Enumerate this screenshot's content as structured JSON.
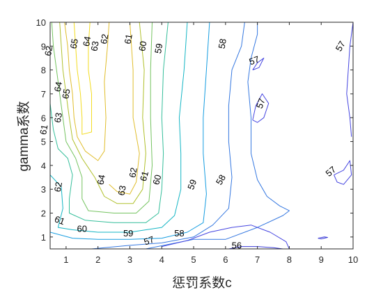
{
  "chart_data": {
    "type": "contour",
    "xlabel": "惩罚系数c",
    "ylabel": "gamma系数",
    "xlim": [
      0.5,
      10
    ],
    "ylim": [
      0.5,
      10
    ],
    "x_ticks": [
      1,
      2,
      3,
      4,
      5,
      6,
      7,
      8,
      9,
      10
    ],
    "y_ticks": [
      1,
      2,
      3,
      4,
      5,
      6,
      7,
      8,
      9,
      10
    ],
    "grid": false,
    "colormap": "parula",
    "level_colors": {
      "56": "#3a3bd6",
      "57": "#4444e0",
      "58": "#3477e0",
      "59": "#149ce0",
      "60": "#13b5c4",
      "61": "#34be9a",
      "62": "#74c35f",
      "63": "#b0c02c",
      "64": "#e0bd2c",
      "65": "#f3dc20"
    },
    "contours": [
      {
        "level": 65,
        "points": [
          [
            1.25,
            10
          ],
          [
            1.3,
            9
          ],
          [
            1.35,
            8
          ],
          [
            1.45,
            7
          ],
          [
            1.5,
            6
          ],
          [
            1.5,
            5.3
          ],
          [
            1.8,
            5.4
          ],
          [
            1.8,
            7
          ],
          [
            1.7,
            8
          ],
          [
            1.7,
            9
          ],
          [
            1.75,
            10
          ]
        ]
      },
      {
        "level": 64,
        "points": [
          [
            0.95,
            10
          ],
          [
            1.05,
            9
          ],
          [
            1.1,
            8
          ],
          [
            1.2,
            7
          ],
          [
            1.25,
            6
          ],
          [
            1.35,
            5.2
          ],
          [
            1.6,
            4.6
          ],
          [
            2.0,
            4.2
          ],
          [
            2.2,
            4.6
          ],
          [
            2.25,
            6
          ],
          [
            2.2,
            7.5
          ],
          [
            2.3,
            9
          ],
          [
            2.35,
            10
          ]
        ]
      },
      {
        "level": 64,
        "points": [
          [
            2.35,
            3.2
          ],
          [
            2.6,
            2.9
          ],
          [
            3.0,
            2.8
          ],
          [
            3.2,
            3.3
          ],
          [
            3.3,
            4.5
          ],
          [
            3.1,
            6
          ],
          [
            3.1,
            8
          ],
          [
            3.0,
            10
          ]
        ]
      },
      {
        "level": 63,
        "points": [
          [
            0.8,
            10
          ],
          [
            0.85,
            9
          ],
          [
            0.9,
            8
          ],
          [
            1.0,
            7
          ],
          [
            1.1,
            6
          ],
          [
            1.2,
            5.1
          ],
          [
            1.5,
            4.3
          ],
          [
            1.9,
            3.5
          ],
          [
            2.2,
            2.7
          ],
          [
            2.6,
            2.4
          ],
          [
            3.1,
            2.4
          ],
          [
            3.4,
            3.0
          ],
          [
            3.5,
            4.5
          ],
          [
            3.4,
            6
          ],
          [
            3.45,
            8
          ],
          [
            3.3,
            10
          ]
        ]
      },
      {
        "level": 62,
        "points": [
          [
            0.55,
            10
          ],
          [
            0.6,
            9
          ],
          [
            0.7,
            8
          ],
          [
            0.8,
            7
          ],
          [
            0.9,
            6
          ],
          [
            1.0,
            5.0
          ],
          [
            1.3,
            4.3
          ],
          [
            1.5,
            3.5
          ],
          [
            1.5,
            2.6
          ],
          [
            1.7,
            2.1
          ],
          [
            2.5,
            2.0
          ],
          [
            3.2,
            2.0
          ],
          [
            3.6,
            2.5
          ],
          [
            3.7,
            4.0
          ],
          [
            3.65,
            6
          ],
          [
            3.65,
            8
          ],
          [
            3.7,
            10
          ]
        ]
      },
      {
        "level": 61,
        "points": [
          [
            0.5,
            6.6
          ],
          [
            0.6,
            5.5
          ],
          [
            0.75,
            4.7
          ],
          [
            1.05,
            4.3
          ],
          [
            1.2,
            3.6
          ],
          [
            1.1,
            2.6
          ],
          [
            1.1,
            2.0
          ],
          [
            1.6,
            1.7
          ],
          [
            2.5,
            1.6
          ],
          [
            3.5,
            1.6
          ],
          [
            3.9,
            2.0
          ],
          [
            4.0,
            3.0
          ],
          [
            4.05,
            4.5
          ],
          [
            4.0,
            6
          ],
          [
            4.05,
            8
          ],
          [
            4.2,
            10
          ]
        ]
      },
      {
        "level": 60,
        "points": [
          [
            0.5,
            3.6
          ],
          [
            0.85,
            3.1
          ],
          [
            0.9,
            2.2
          ],
          [
            0.75,
            1.4
          ],
          [
            1.2,
            1.3
          ],
          [
            2.0,
            1.2
          ],
          [
            3.0,
            1.2
          ],
          [
            4.0,
            1.4
          ],
          [
            4.4,
            1.9
          ],
          [
            4.6,
            3.0
          ],
          [
            4.6,
            4.5
          ],
          [
            4.55,
            6
          ],
          [
            4.7,
            8
          ],
          [
            4.8,
            10
          ]
        ]
      },
      {
        "level": 59,
        "points": [
          [
            0.5,
            1.2
          ],
          [
            1.2,
            0.95
          ],
          [
            2.0,
            0.9
          ],
          [
            3.0,
            0.9
          ],
          [
            4.0,
            0.95
          ],
          [
            4.8,
            1.2
          ],
          [
            5.3,
            1.6
          ],
          [
            5.4,
            2.8
          ],
          [
            5.3,
            4.5
          ],
          [
            5.3,
            6
          ],
          [
            5.4,
            8
          ],
          [
            5.5,
            10
          ]
        ]
      },
      {
        "level": 58,
        "points": [
          [
            1.8,
            0.5
          ],
          [
            3.0,
            0.65
          ],
          [
            4.0,
            0.75
          ],
          [
            5.0,
            1.0
          ],
          [
            5.6,
            1.5
          ],
          [
            6.1,
            2.2
          ],
          [
            6.2,
            3.5
          ],
          [
            6.1,
            5
          ],
          [
            6.1,
            6.5
          ],
          [
            6.2,
            8
          ],
          [
            6.5,
            9
          ],
          [
            6.6,
            10
          ]
        ]
      },
      {
        "level": 58,
        "points": [
          [
            3.5,
            0.5
          ],
          [
            5.0,
            0.9
          ],
          [
            6.0,
            0.9
          ],
          [
            7.0,
            1.4
          ],
          [
            7.8,
            1.9
          ],
          [
            8.0,
            2.1
          ],
          [
            7.7,
            2.3
          ],
          [
            7.3,
            2.7
          ],
          [
            7.0,
            3.4
          ],
          [
            6.8,
            4.5
          ],
          [
            6.8,
            6
          ],
          [
            6.7,
            7.5
          ],
          [
            6.8,
            8.5
          ],
          [
            7.0,
            9.5
          ],
          [
            7.0,
            10
          ]
        ]
      },
      {
        "level": 57,
        "points": [
          [
            4.0,
            0.6
          ],
          [
            4.8,
            0.85
          ],
          [
            5.5,
            1.2
          ],
          [
            6.2,
            1.4
          ],
          [
            6.8,
            1.5
          ],
          [
            7.4,
            1.2
          ],
          [
            7.9,
            0.8
          ],
          [
            8.0,
            0.5
          ]
        ]
      },
      {
        "level": 57,
        "points": [
          [
            6.85,
            8.0
          ],
          [
            7.05,
            8.1
          ],
          [
            7.2,
            8.5
          ],
          [
            7.0,
            8.3
          ],
          [
            6.85,
            8.0
          ]
        ]
      },
      {
        "level": 57,
        "points": [
          [
            6.85,
            5.9
          ],
          [
            6.95,
            6.5
          ],
          [
            7.15,
            7.0
          ],
          [
            7.35,
            6.6
          ],
          [
            7.2,
            6.0
          ],
          [
            7.0,
            5.8
          ],
          [
            6.85,
            5.9
          ]
        ]
      },
      {
        "level": 57,
        "points": [
          [
            9.4,
            3.6
          ],
          [
            9.7,
            3.8
          ],
          [
            9.9,
            4.2
          ],
          [
            9.95,
            3.6
          ],
          [
            9.7,
            3.2
          ],
          [
            9.5,
            3.3
          ],
          [
            9.4,
            3.6
          ]
        ]
      },
      {
        "level": 57,
        "points": [
          [
            10,
            10
          ],
          [
            9.9,
            9.0
          ],
          [
            9.85,
            8.0
          ],
          [
            9.8,
            7.0
          ],
          [
            9.9,
            6.0
          ],
          [
            9.95,
            5.2
          ]
        ]
      },
      {
        "level": 56,
        "points": [
          [
            6.1,
            0.5
          ],
          [
            6.5,
            0.6
          ],
          [
            7.0,
            0.6
          ],
          [
            7.5,
            0.55
          ],
          [
            7.8,
            0.5
          ]
        ]
      },
      {
        "level": 56,
        "points": [
          [
            8.9,
            0.95
          ],
          [
            9.1,
            1.0
          ],
          [
            9.2,
            0.98
          ],
          [
            9.0,
            0.92
          ],
          [
            8.9,
            0.95
          ]
        ]
      }
    ],
    "labels": [
      {
        "text": "65",
        "x": 1.25,
        "y": 9.1,
        "rotate": -80
      },
      {
        "text": "64",
        "x": 1.65,
        "y": 9.2,
        "rotate": -80
      },
      {
        "text": "63",
        "x": 1.9,
        "y": 9.0,
        "rotate": -80
      },
      {
        "text": "62",
        "x": 2.2,
        "y": 9.3,
        "rotate": -80
      },
      {
        "text": "61",
        "x": 2.95,
        "y": 9.3,
        "rotate": -80
      },
      {
        "text": "60",
        "x": 3.4,
        "y": 9.0,
        "rotate": -80
      },
      {
        "text": "59",
        "x": 3.9,
        "y": 8.9,
        "rotate": -80
      },
      {
        "text": "58",
        "x": 5.9,
        "y": 9.1,
        "rotate": -80
      },
      {
        "text": "57",
        "x": 6.9,
        "y": 8.4,
        "rotate": -20
      },
      {
        "text": "57",
        "x": 7.1,
        "y": 6.6,
        "rotate": -70
      },
      {
        "text": "57",
        "x": 9.6,
        "y": 9.0,
        "rotate": -60
      },
      {
        "text": "62",
        "x": 0.45,
        "y": 8.8,
        "rotate": -80
      },
      {
        "text": "64",
        "x": 0.75,
        "y": 7.3,
        "rotate": -80
      },
      {
        "text": "65",
        "x": 1.0,
        "y": 7.0,
        "rotate": -80
      },
      {
        "text": "63",
        "x": 0.75,
        "y": 6.0,
        "rotate": -80
      },
      {
        "text": "61",
        "x": 0.3,
        "y": 5.5,
        "rotate": -80
      },
      {
        "text": "62",
        "x": 0.75,
        "y": 3.1,
        "rotate": -80
      },
      {
        "text": "64",
        "x": 2.1,
        "y": 3.4,
        "rotate": -80
      },
      {
        "text": "63",
        "x": 2.75,
        "y": 2.95,
        "rotate": -80
      },
      {
        "text": "62",
        "x": 3.1,
        "y": 3.7,
        "rotate": -80
      },
      {
        "text": "61",
        "x": 3.45,
        "y": 3.55,
        "rotate": -75
      },
      {
        "text": "60",
        "x": 3.85,
        "y": 3.4,
        "rotate": -75
      },
      {
        "text": "59",
        "x": 4.95,
        "y": 3.2,
        "rotate": -70
      },
      {
        "text": "58",
        "x": 5.85,
        "y": 3.4,
        "rotate": -60
      },
      {
        "text": "61",
        "x": 0.8,
        "y": 1.7,
        "rotate": 20
      },
      {
        "text": "60",
        "x": 1.5,
        "y": 1.35,
        "rotate": 0
      },
      {
        "text": "59",
        "x": 2.95,
        "y": 1.15,
        "rotate": 0
      },
      {
        "text": "58",
        "x": 4.55,
        "y": 1.15,
        "rotate": 0
      },
      {
        "text": "57",
        "x": 3.6,
        "y": 0.85,
        "rotate": -20
      },
      {
        "text": "56",
        "x": 6.35,
        "y": 0.65,
        "rotate": 0
      },
      {
        "text": "57",
        "x": 9.3,
        "y": 3.75,
        "rotate": -40
      }
    ]
  }
}
